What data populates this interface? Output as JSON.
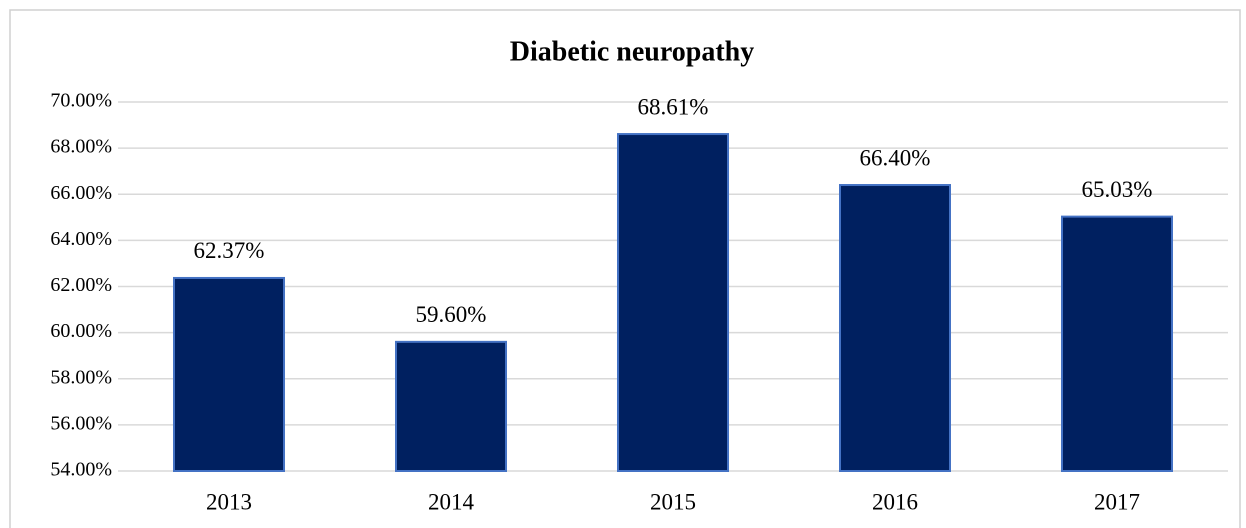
{
  "chart_data": {
    "type": "bar",
    "title": "Diabetic neuropathy",
    "categories": [
      "2013",
      "2014",
      "2015",
      "2016",
      "2017"
    ],
    "values": [
      62.37,
      59.6,
      68.61,
      66.4,
      65.03
    ],
    "value_labels": [
      "62.37%",
      "59.60%",
      "68.61%",
      "66.40%",
      "65.03%"
    ],
    "color": "#002060",
    "ylim": [
      54,
      70
    ],
    "yticks": [
      {
        "value": 54,
        "label": "54.00%"
      },
      {
        "value": 56,
        "label": "56.00%"
      },
      {
        "value": 58,
        "label": "58.00%"
      },
      {
        "value": 60,
        "label": "60.00%"
      },
      {
        "value": 62,
        "label": "62.00%"
      },
      {
        "value": 64,
        "label": "64.00%"
      },
      {
        "value": 66,
        "label": "66.00%"
      },
      {
        "value": 68,
        "label": "68.00%"
      },
      {
        "value": 70,
        "label": "70.00%"
      }
    ],
    "grid": true
  }
}
